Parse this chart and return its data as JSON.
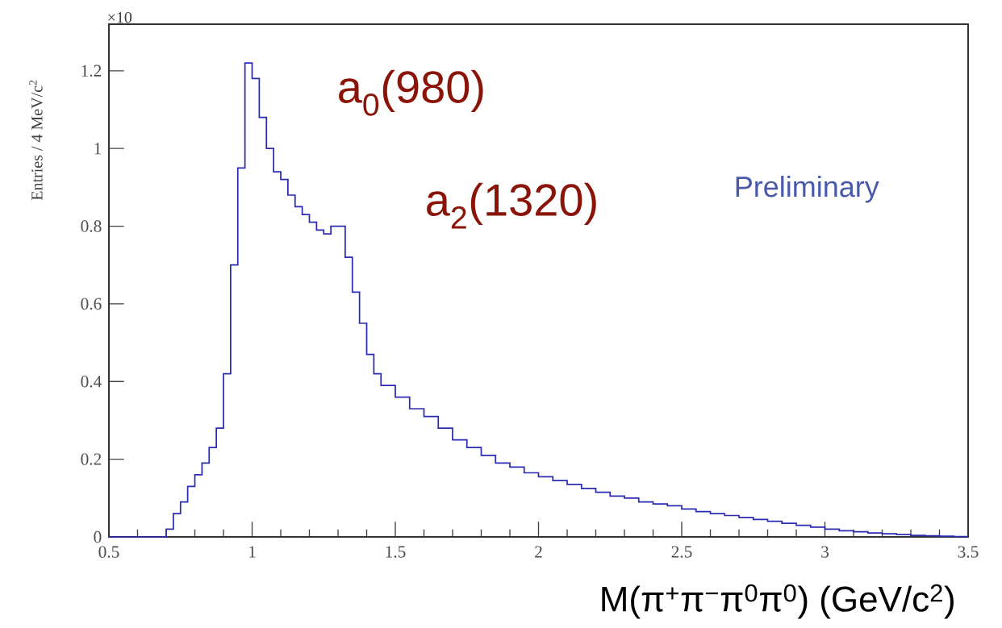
{
  "chart_data": {
    "type": "histogram",
    "xlabel": "M(π$^{+}$π$^{−}$π$^{0}$π$^{0}$) (GeV/c$^{2}$)",
    "ylabel": "Entries / 4 MeV/c$^{2}$",
    "color": "#2a2ab4",
    "bins": [
      0.5,
      0.7,
      0.725,
      0.75,
      0.775,
      0.8,
      0.825,
      0.85,
      0.875,
      0.9,
      0.925,
      0.95,
      0.975,
      1.0,
      1.025,
      1.05,
      1.075,
      1.1,
      1.125,
      1.15,
      1.175,
      1.2,
      1.225,
      1.25,
      1.275,
      1.3,
      1.325,
      1.35,
      1.375,
      1.4,
      1.425,
      1.45,
      1.5,
      1.55,
      1.6,
      1.65,
      1.7,
      1.75,
      1.8,
      1.85,
      1.9,
      1.95,
      2.0,
      2.05,
      2.1,
      2.15,
      2.2,
      2.25,
      2.3,
      2.35,
      2.4,
      2.45,
      2.5,
      2.55,
      2.6,
      2.65,
      2.7,
      2.75,
      2.8,
      2.85,
      2.9,
      2.95,
      3.0,
      3.05,
      3.1,
      3.15,
      3.2,
      3.25,
      3.3,
      3.35,
      3.4,
      3.45,
      3.5
    ],
    "values": [
      0,
      0.02,
      0.06,
      0.09,
      0.13,
      0.16,
      0.19,
      0.23,
      0.28,
      0.42,
      0.7,
      0.95,
      1.22,
      1.18,
      1.08,
      1.0,
      0.94,
      0.92,
      0.88,
      0.85,
      0.83,
      0.81,
      0.79,
      0.78,
      0.8,
      0.8,
      0.72,
      0.63,
      0.55,
      0.47,
      0.42,
      0.39,
      0.36,
      0.33,
      0.31,
      0.28,
      0.25,
      0.23,
      0.21,
      0.19,
      0.18,
      0.165,
      0.155,
      0.145,
      0.135,
      0.125,
      0.115,
      0.105,
      0.1,
      0.09,
      0.085,
      0.08,
      0.072,
      0.065,
      0.06,
      0.055,
      0.05,
      0.045,
      0.04,
      0.035,
      0.03,
      0.025,
      0.02,
      0.016,
      0.013,
      0.01,
      0.008,
      0.006,
      0.004,
      0.003,
      0.002,
      0.001
    ],
    "xlim": [
      0.5,
      3.5
    ],
    "ylim": [
      0,
      1.32
    ],
    "xticks": [
      0.5,
      1,
      1.5,
      2,
      2.5,
      3,
      3.5
    ],
    "yticks": [
      0,
      0.2,
      0.4,
      0.6,
      0.8,
      1,
      1.2
    ],
    "annotations": [
      "×10",
      "a$_{0}$(980)",
      "a$_{2}$(1320)",
      "Preliminary"
    ]
  }
}
